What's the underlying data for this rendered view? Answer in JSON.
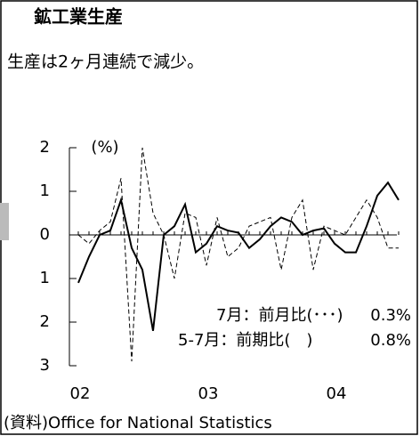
{
  "chart_data": {
    "type": "line",
    "title": "鉱工業生産",
    "subtitle": "生産は2ヶ月連続で減少。",
    "y_label": "(%)",
    "categories": [
      "02",
      null,
      null,
      null,
      null,
      null,
      null,
      null,
      null,
      null,
      null,
      null,
      "03",
      null,
      null,
      null,
      null,
      null,
      null,
      null,
      null,
      null,
      null,
      null,
      "04",
      null,
      null,
      null,
      null,
      null,
      null
    ],
    "series": [
      {
        "name": "前期比",
        "color": "#000000",
        "style": "solid",
        "values": [
          -1.1,
          -0.5,
          0.0,
          0.1,
          0.8,
          -0.3,
          -0.8,
          -2.2,
          0.0,
          0.2,
          0.7,
          -0.4,
          -0.2,
          0.2,
          0.1,
          0.05,
          -0.3,
          -0.1,
          0.2,
          0.4,
          0.3,
          0.0,
          0.1,
          0.15,
          -0.2,
          -0.4,
          -0.4,
          0.2,
          0.9,
          1.2,
          0.8
        ]
      },
      {
        "name": "前月比",
        "color": "#000000",
        "style": "dashed",
        "values": [
          0.0,
          -0.2,
          0.1,
          0.3,
          1.3,
          -2.9,
          2.0,
          0.5,
          0.0,
          -1.0,
          0.5,
          0.4,
          -0.7,
          0.4,
          -0.5,
          -0.3,
          0.2,
          0.3,
          0.4,
          -0.8,
          0.4,
          0.8,
          -0.8,
          0.2,
          0.1,
          0.0,
          0.4,
          0.8,
          0.4,
          -0.3,
          -0.3
        ]
      }
    ],
    "ylim": [
      -3,
      2
    ],
    "yticks": [
      2,
      1,
      0,
      {
        "value": -1,
        "label": "1"
      },
      {
        "value": -2,
        "label": "2"
      },
      {
        "value": -3,
        "label": "3"
      }
    ],
    "annotations": [
      "7月：前月比(･･･)",
      "0.3%",
      "5-7月：前期比(　)",
      "0.8%"
    ],
    "source": "(資料)Office for National Statistics"
  }
}
